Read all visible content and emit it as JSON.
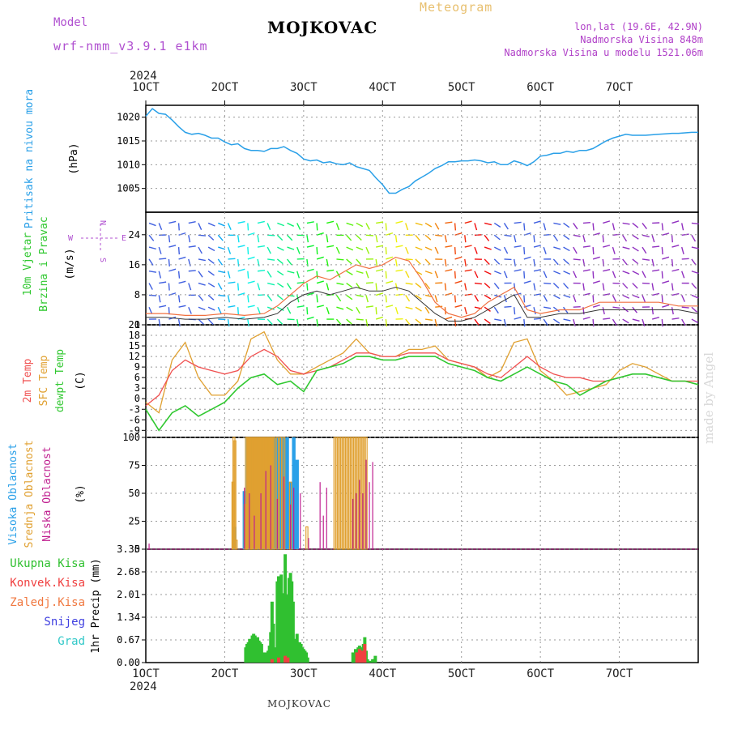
{
  "header": {
    "meteogram_label": "Meteogram",
    "station": "MOJKOVAC",
    "model_label": "Model",
    "model_value": "wrf-nmm_v3.9.1 e1km",
    "coords": "lon,lat (19.6E, 42.9N)",
    "elevation": "Nadmorska Visina 848m",
    "model_elevation": "Nadmorska Visina u modelu 1521.06m",
    "footer_station": "MOJKOVAC",
    "watermark": "made by Angel"
  },
  "colors": {
    "pressure": "#2aa0e8",
    "temp2m": "#f05050",
    "sfc": "#e0a030",
    "dewpt": "#30c830",
    "high_cloud": "#2aa0e8",
    "mid_cloud": "#e0a030",
    "low_cloud": "#c02090",
    "precip": "#30c030",
    "convective": "#f04040"
  },
  "chart_data": [
    {
      "type": "line",
      "panel": "pressure",
      "year_label": "2024",
      "time_ticks": [
        "1OCT",
        "2OCT",
        "3OCT",
        "4OCT",
        "5OCT",
        "6OCT",
        "7OCT"
      ],
      "ylabel_lines": [
        "Pritisak na nivou mora",
        "(hPa)"
      ],
      "yticks": [
        1005,
        1010,
        1015,
        1020
      ],
      "ylim": [
        1000,
        1022.5
      ],
      "series": [
        {
          "x": [
            0,
            2,
            4,
            6,
            8,
            10,
            12,
            14,
            16,
            18,
            20,
            22,
            24,
            26,
            28,
            30,
            32,
            34,
            36,
            38,
            40,
            42,
            44,
            46,
            48,
            50,
            52,
            54,
            56,
            58,
            60,
            62,
            64,
            66,
            68,
            70,
            72,
            74,
            76,
            78,
            80,
            82,
            84,
            86,
            88,
            90,
            92,
            94,
            96,
            98,
            100,
            102,
            104,
            106,
            108,
            110,
            112,
            114,
            116,
            118,
            120,
            122,
            124,
            126,
            128,
            130,
            132,
            134,
            136,
            138,
            140,
            142,
            144,
            146,
            148,
            150,
            152,
            154,
            156,
            158,
            160,
            162,
            164,
            166,
            168
          ],
          "values": [
            1020.2,
            1021.8,
            1020.8,
            1020.6,
            1019.4,
            1018.0,
            1016.8,
            1016.4,
            1016.6,
            1016.2,
            1015.6,
            1015.6,
            1014.8,
            1014.2,
            1014.4,
            1013.4,
            1013.0,
            1013.0,
            1012.8,
            1013.4,
            1013.4,
            1013.8,
            1013.0,
            1012.4,
            1011.2,
            1010.8,
            1011.0,
            1010.4,
            1010.6,
            1010.2,
            1010.0,
            1010.4,
            1009.6,
            1009.2,
            1008.8,
            1007.2,
            1005.8,
            1004.0,
            1004.0,
            1004.8,
            1005.4,
            1006.6,
            1007.4,
            1008.2,
            1009.2,
            1009.8,
            1010.6,
            1010.6,
            1010.8,
            1010.8,
            1011.0,
            1010.8,
            1010.4,
            1010.6,
            1010.0,
            1010.0,
            1010.8,
            1010.4,
            1009.8,
            1010.6,
            1011.8,
            1012.0,
            1012.4,
            1012.4,
            1012.8,
            1012.6,
            1013.0,
            1013.0,
            1013.4,
            1014.2,
            1015.0,
            1015.6,
            1016.0,
            1016.4,
            1016.2,
            1016.2,
            1016.2,
            1016.3,
            1016.4,
            1016.5,
            1016.6,
            1016.6,
            1016.7,
            1016.8,
            1016.8
          ]
        }
      ]
    },
    {
      "type": "line",
      "panel": "wind",
      "ylabel_lines": [
        "10m Vjetar",
        "Brzina i Pravac",
        "(m/s)"
      ],
      "compass": {
        "n": "N",
        "s": "S",
        "e": "E",
        "w": "W"
      },
      "yticks": [
        0,
        8,
        16,
        24
      ],
      "ylim": [
        0,
        30
      ],
      "series": [
        {
          "name": "speed",
          "x": [
            0,
            6,
            12,
            18,
            24,
            30,
            36,
            40,
            44,
            48,
            52,
            56,
            60,
            64,
            68,
            72,
            76,
            80,
            84,
            88,
            92,
            96,
            100,
            104,
            108,
            112,
            116,
            120,
            126,
            132,
            138,
            144,
            150,
            156,
            162,
            168
          ],
          "values": [
            2,
            2,
            1.5,
            1.5,
            2,
            1.5,
            2,
            3,
            6,
            8,
            9,
            8,
            9,
            10,
            9,
            9,
            10,
            9,
            6,
            3,
            1,
            1,
            2,
            4,
            6,
            8,
            2,
            2,
            3,
            3,
            4,
            4,
            4,
            4,
            4,
            3
          ]
        },
        {
          "name": "gust",
          "x": [
            0,
            6,
            12,
            18,
            24,
            30,
            36,
            40,
            44,
            48,
            52,
            56,
            60,
            64,
            68,
            72,
            76,
            80,
            84,
            88,
            92,
            96,
            100,
            104,
            108,
            112,
            116,
            120,
            126,
            132,
            138,
            144,
            150,
            156,
            162,
            168
          ],
          "values": [
            3,
            3,
            2.5,
            2.5,
            3,
            2.5,
            3,
            5,
            8,
            11,
            13,
            12,
            14,
            16,
            15,
            16,
            18,
            17,
            12,
            6,
            3,
            2,
            3,
            6,
            8,
            10,
            4,
            3,
            4,
            4,
            6,
            6,
            6,
            6,
            5,
            5
          ]
        }
      ]
    },
    {
      "type": "line",
      "panel": "temperature",
      "ylabel_lines": [
        "2m Temp",
        "SFC Temp",
        "dewpt Temp",
        "(C)"
      ],
      "yticks": [
        -9,
        -6,
        -3,
        0,
        3,
        6,
        9,
        12,
        15,
        18,
        21
      ],
      "ylim": [
        -11,
        21
      ],
      "series": [
        {
          "name": "2m Temp",
          "x": [
            0,
            4,
            8,
            12,
            16,
            20,
            24,
            28,
            32,
            36,
            40,
            44,
            48,
            52,
            56,
            60,
            64,
            68,
            72,
            76,
            80,
            84,
            88,
            92,
            96,
            100,
            104,
            108,
            112,
            116,
            120,
            124,
            128,
            132,
            136,
            140,
            144,
            148,
            152,
            156,
            160,
            164,
            168
          ],
          "values": [
            -2,
            1,
            8,
            11,
            9,
            8,
            7,
            8,
            12,
            14,
            12,
            8,
            7,
            8,
            9,
            11,
            13,
            13,
            12,
            12,
            13,
            13,
            13,
            11,
            10,
            9,
            7,
            6,
            9,
            12,
            9,
            7,
            6,
            6,
            5,
            5,
            6,
            7,
            7,
            6,
            5,
            5,
            5
          ]
        },
        {
          "name": "SFC Temp",
          "x": [
            0,
            4,
            8,
            12,
            16,
            20,
            24,
            28,
            32,
            36,
            40,
            44,
            48,
            52,
            56,
            60,
            64,
            68,
            72,
            76,
            80,
            84,
            88,
            92,
            96,
            100,
            104,
            108,
            112,
            116,
            120,
            124,
            128,
            132,
            136,
            140,
            144,
            148,
            152,
            156,
            160,
            164,
            168
          ],
          "values": [
            -1,
            -4,
            11,
            16,
            6,
            1,
            1,
            5,
            17,
            19,
            11,
            7,
            7,
            9,
            11,
            13,
            17,
            13,
            12,
            12,
            14,
            14,
            15,
            11,
            10,
            9,
            6,
            8,
            16,
            17,
            8,
            5,
            1,
            2,
            3,
            4,
            8,
            10,
            9,
            7,
            5,
            5,
            4
          ]
        },
        {
          "name": "dewpt Temp",
          "x": [
            0,
            4,
            8,
            12,
            16,
            20,
            24,
            28,
            32,
            36,
            40,
            44,
            48,
            52,
            56,
            60,
            64,
            68,
            72,
            76,
            80,
            84,
            88,
            92,
            96,
            100,
            104,
            108,
            112,
            116,
            120,
            124,
            128,
            132,
            136,
            140,
            144,
            148,
            152,
            156,
            160,
            164,
            168
          ],
          "values": [
            -3,
            -9,
            -4,
            -2,
            -5,
            -3,
            -1,
            3,
            6,
            7,
            4,
            5,
            2,
            8,
            9,
            10,
            12,
            12,
            11,
            11,
            12,
            12,
            12,
            10,
            9,
            8,
            6,
            5,
            7,
            9,
            7,
            5,
            4,
            1,
            3,
            5,
            6,
            7,
            7,
            6,
            5,
            5,
            4
          ]
        }
      ]
    },
    {
      "type": "bar",
      "panel": "cloud",
      "ylabel_lines": [
        "Visoka Oblacnost",
        "Srednja Oblacnost",
        "Niska Oblacnost",
        "(%)"
      ],
      "yticks": [
        0,
        25,
        50,
        75,
        100
      ],
      "ylim": [
        0,
        100
      ],
      "series": [
        {
          "name": "Visoka Oblacnost",
          "x": [
            27,
            30,
            31,
            32,
            33,
            34,
            35,
            36,
            37,
            38,
            39,
            40,
            41,
            42,
            43,
            44,
            45,
            46
          ],
          "values": [
            20,
            52,
            100,
            100,
            100,
            100,
            100,
            100,
            100,
            100,
            100,
            100,
            100,
            100,
            100,
            60,
            100,
            80
          ]
        },
        {
          "name": "Srednja Oblacnost",
          "x": [
            26.5,
            26.8,
            27.1,
            27.5,
            30.2,
            30.6,
            31.0,
            31.4,
            31.8,
            32.2,
            32.6,
            33.0,
            33.4,
            33.8,
            34.2,
            34.6,
            35.0,
            35.4,
            35.8,
            36.2,
            36.6,
            37.0,
            37.4,
            37.8,
            38.2,
            38.6,
            39.0,
            40.0,
            41.0,
            42.0,
            44.0,
            49.0,
            57.5,
            58.0,
            58.5,
            59.0,
            59.5,
            60.0,
            60.5,
            61.0,
            61.5,
            62.0,
            62.5,
            63.0,
            63.5,
            64.0,
            64.5,
            65.0,
            65.5,
            66.0,
            66.5,
            67.0
          ],
          "values": [
            60,
            100,
            97,
            8,
            40,
            100,
            100,
            100,
            100,
            100,
            100,
            100,
            100,
            100,
            100,
            100,
            100,
            100,
            100,
            100,
            100,
            100,
            100,
            100,
            100,
            100,
            100,
            100,
            100,
            100,
            60,
            20,
            100,
            100,
            100,
            100,
            100,
            100,
            100,
            100,
            100,
            100,
            100,
            100,
            100,
            100,
            100,
            100,
            100,
            100,
            100,
            100
          ]
        },
        {
          "name": "Niska Oblacnost",
          "x": [
            1,
            30,
            31.5,
            33,
            35,
            36.5,
            38,
            40,
            42,
            44,
            45,
            47,
            49.5,
            53,
            54,
            55,
            63,
            64,
            65,
            66,
            67,
            68,
            69
          ],
          "values": [
            5,
            55,
            50,
            30,
            50,
            70,
            75,
            45,
            65,
            40,
            55,
            50,
            10,
            60,
            30,
            55,
            45,
            50,
            62,
            50,
            80,
            60,
            78
          ]
        }
      ]
    },
    {
      "type": "bar",
      "panel": "precip",
      "ylabel_lines": [
        "1hr Precip (mm)"
      ],
      "legend": [
        "Ukupna Kisa",
        "Konvek.Kisa",
        "Zaledj.Kisa",
        "Snijeg",
        "Grad"
      ],
      "yticks": [
        0,
        0.67,
        1.34,
        2.01,
        2.68,
        3.35
      ],
      "ylim": [
        0,
        3.35
      ],
      "series": [
        {
          "name": "Ukupna Kisa",
          "x": [
            30.4,
            30.8,
            31.2,
            31.6,
            32.0,
            32.4,
            32.8,
            33.2,
            33.6,
            34.0,
            34.4,
            34.8,
            35.2,
            35.6,
            36.0,
            36.4,
            36.8,
            37.2,
            37.6,
            38.0,
            38.4,
            38.8,
            39.2,
            39.6,
            40.0,
            40.4,
            40.8,
            41.2,
            41.6,
            42.0,
            42.4,
            42.8,
            43.2,
            43.6,
            44.0,
            44.4,
            44.8,
            45.2,
            45.6,
            46.0,
            46.4,
            46.8,
            47.2,
            47.6,
            48.0,
            48.4,
            48.8,
            49.2,
            63.0,
            63.4,
            63.8,
            64.2,
            64.6,
            65.0,
            65.4,
            65.8,
            66.2,
            66.6,
            67.0,
            67.4,
            67.8,
            68.2,
            68.6,
            69.0,
            69.4,
            69.8
          ],
          "values": [
            0.45,
            0.55,
            0.6,
            0.7,
            0.65,
            0.8,
            0.85,
            0.8,
            0.7,
            0.75,
            0.65,
            0.6,
            0.55,
            0.3,
            0.2,
            0.3,
            0.2,
            0.35,
            0.5,
            0.9,
            1.8,
            1.15,
            0.4,
            0.45,
            2.4,
            2.55,
            1.6,
            2.6,
            1.9,
            2.05,
            3.2,
            1.9,
            2.0,
            2.5,
            2.65,
            2.4,
            1.8,
            0.5,
            0.7,
            0.85,
            0.6,
            0.6,
            0.55,
            0.45,
            0.4,
            0.35,
            0.3,
            0.15,
            0.3,
            0.2,
            0.4,
            0.35,
            0.45,
            0.5,
            0.4,
            0.45,
            0.55,
            0.75,
            0.35,
            0.1,
            0.05,
            0.05,
            0.05,
            0.1,
            0.1,
            0.2
          ]
        },
        {
          "name": "Konvek.Kisa",
          "x": [
            38.4,
            40.4,
            42.4,
            43.2,
            64.2,
            65.0,
            65.8,
            66.6
          ],
          "values": [
            0.1,
            0.15,
            0.2,
            0.15,
            0.3,
            0.4,
            0.35,
            0.55
          ]
        }
      ]
    }
  ]
}
